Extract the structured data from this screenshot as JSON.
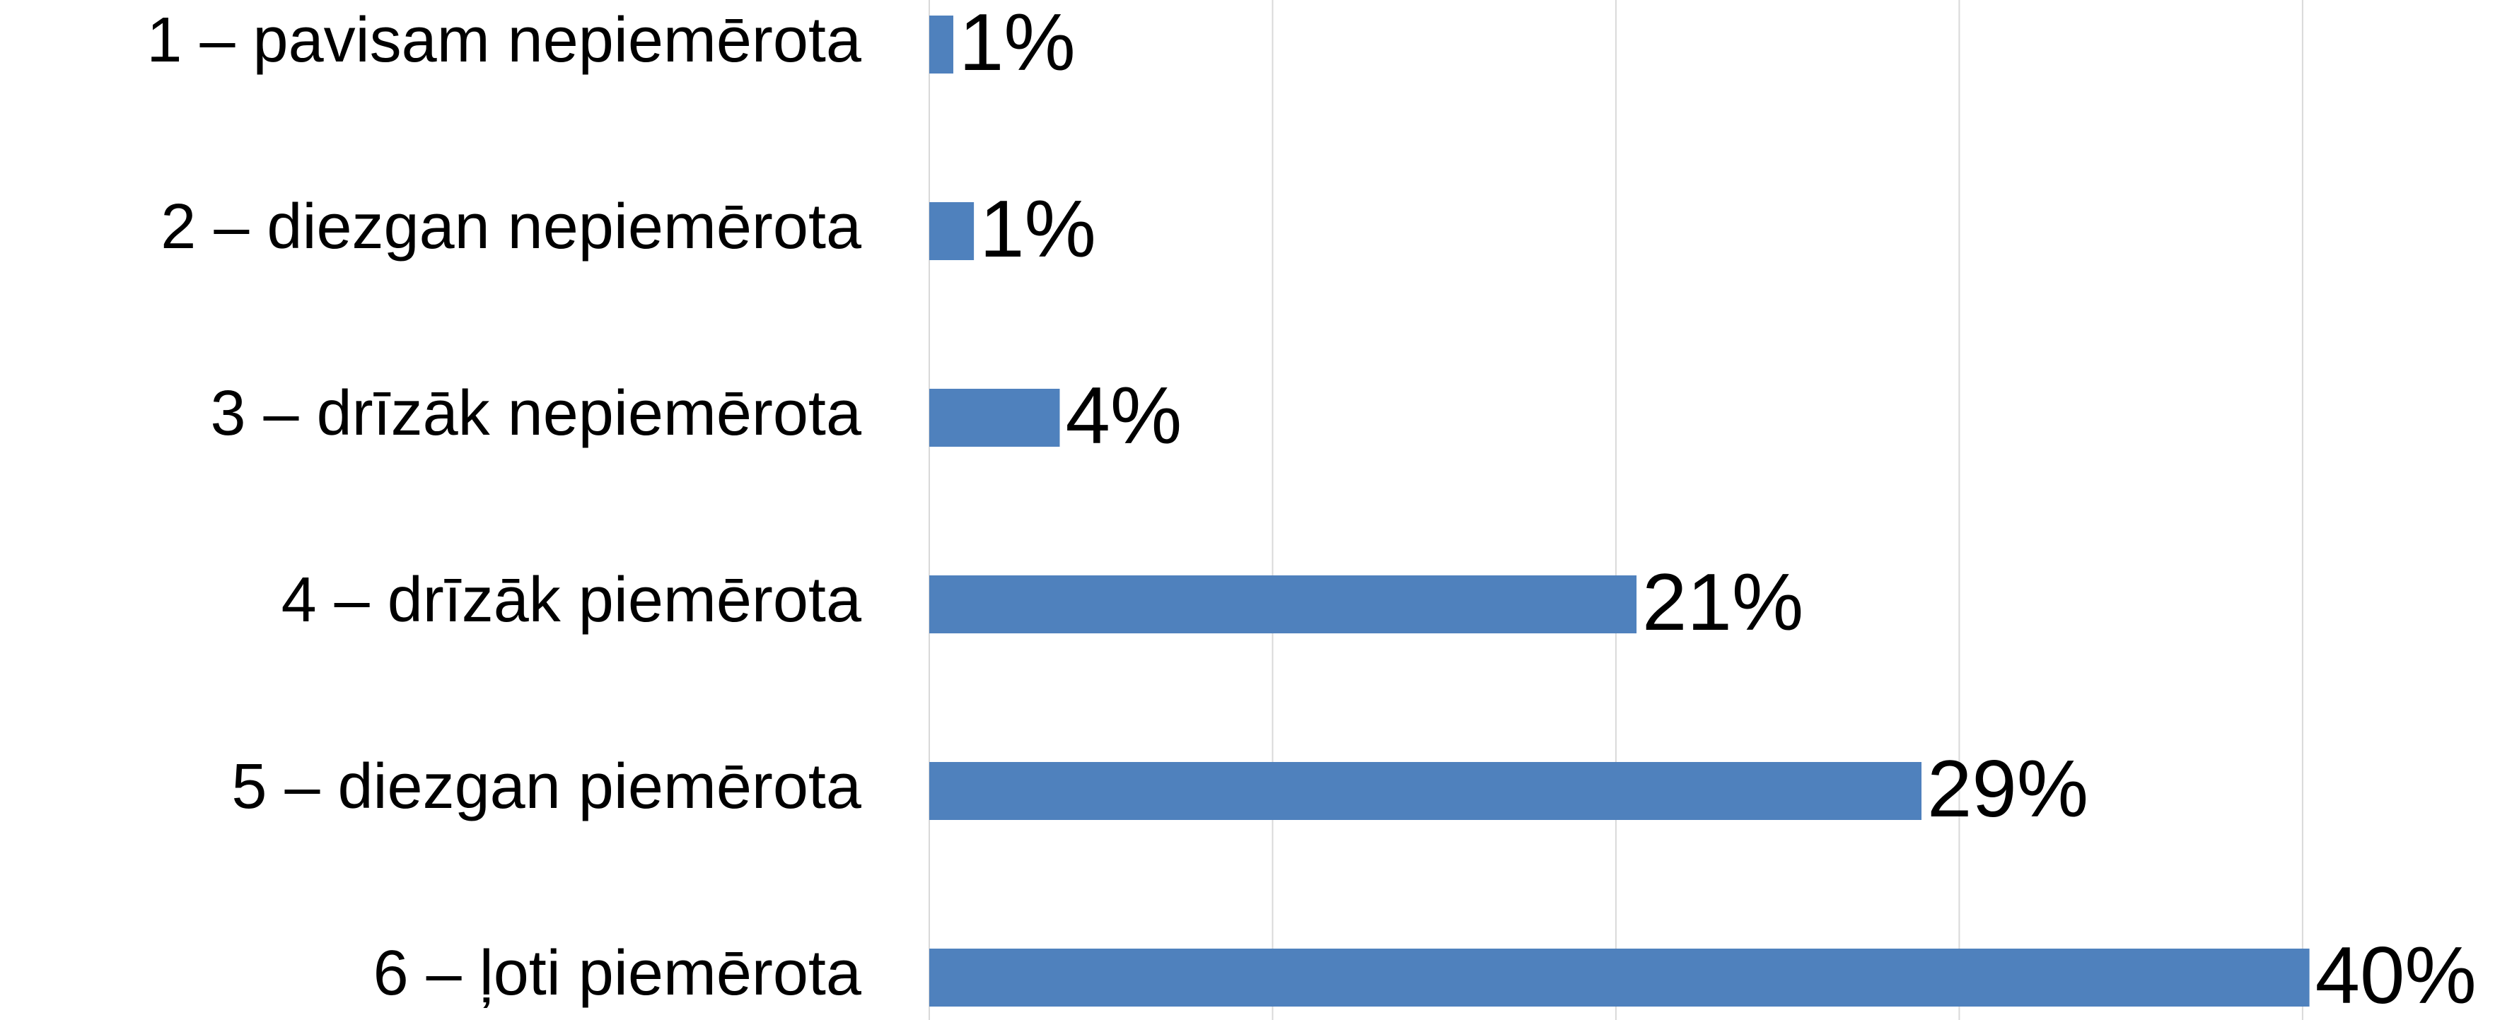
{
  "chart_data": {
    "type": "barh",
    "categories": [
      "1 – pavisam nepiemērota",
      "2 – diezgan nepiemērota",
      "3 – drīzāk nepiemērota",
      "4 – drīzāk piemērota",
      "5 – diezgan piemērota",
      "6 – ļoti piemērota"
    ],
    "values": [
      0.7,
      1.3,
      3.8,
      20.6,
      28.9,
      40.2
    ],
    "value_labels": [
      "1%",
      "1%",
      "4%",
      "21%",
      "29%",
      "40%"
    ],
    "color": "#4f81bd",
    "xlim": [
      0,
      46.1
    ],
    "xticks": [
      0,
      10,
      20,
      30,
      40
    ],
    "grid": true
  }
}
